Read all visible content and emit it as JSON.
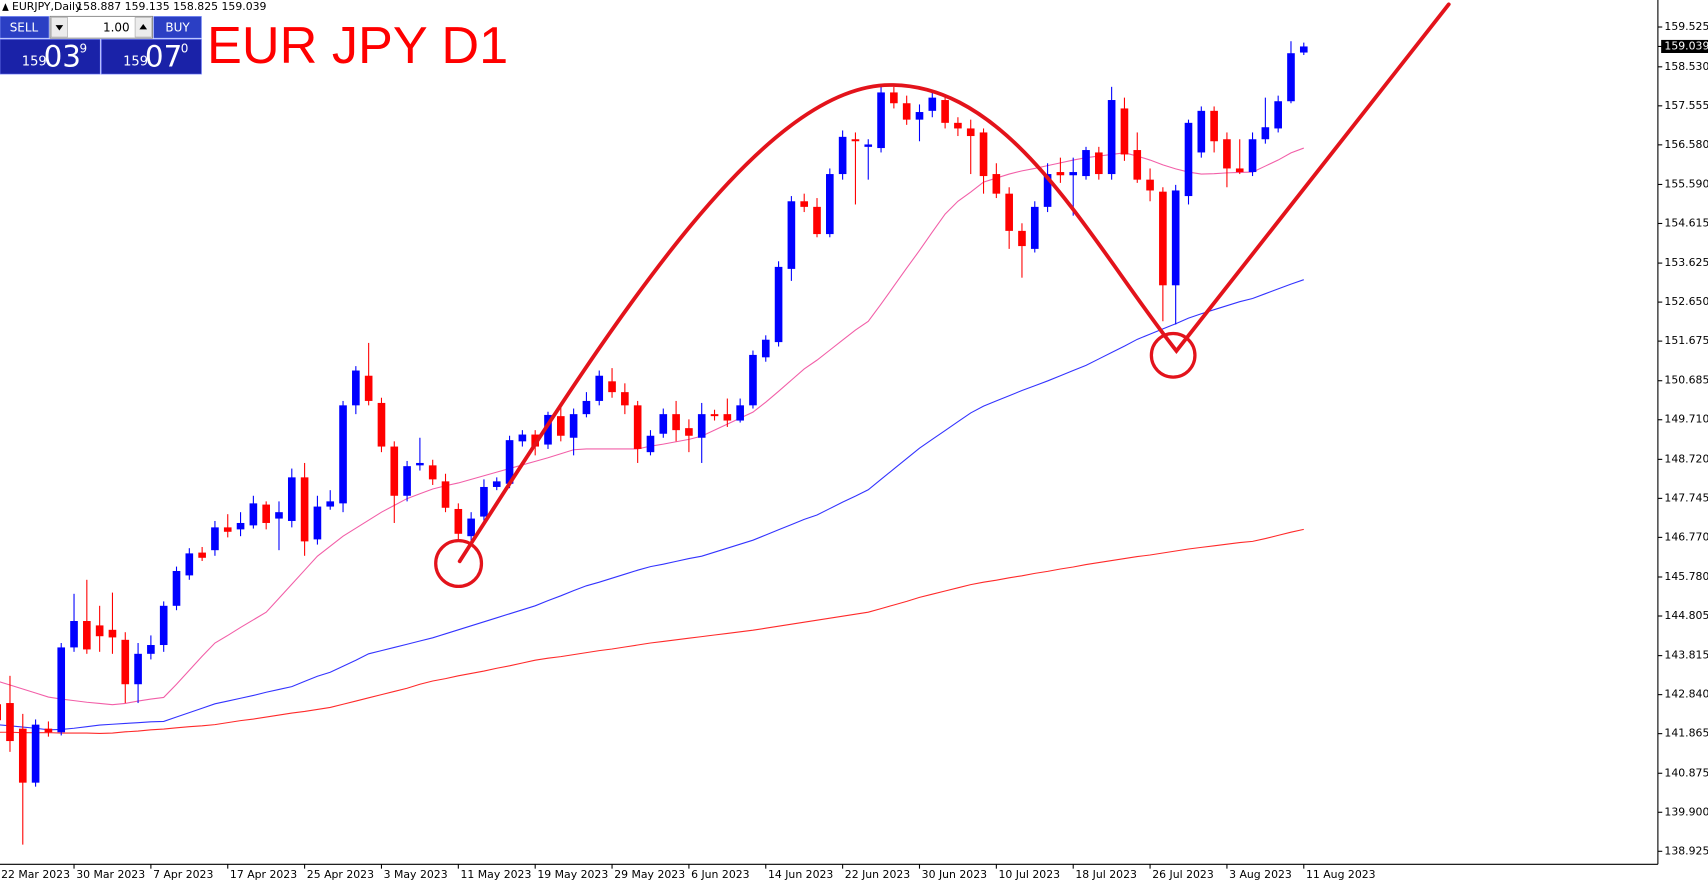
{
  "header": {
    "symbol": "EURJPY,Daily",
    "ohlc": "158.887 159.135 158.825 159.039"
  },
  "trade_panel": {
    "sell": "SELL",
    "lot": "1.00",
    "buy": "BUY",
    "sell_price": {
      "handle": "159",
      "pips": "03",
      "point": "9"
    },
    "buy_price": {
      "handle": "159",
      "pips": "07",
      "point": "0"
    }
  },
  "chart_data": {
    "type": "candlestick",
    "title": "EUR JPY D1",
    "categories": [
      "22 Mar 2023",
      null,
      null,
      null,
      null,
      null,
      "30 Mar 2023",
      null,
      null,
      null,
      null,
      null,
      "7 Apr 2023",
      null,
      null,
      null,
      null,
      null,
      "17 Apr 2023",
      null,
      null,
      null,
      null,
      null,
      "25 Apr 2023",
      null,
      null,
      null,
      null,
      null,
      "3 May 2023",
      null,
      null,
      null,
      null,
      null,
      "11 May 2023",
      null,
      null,
      null,
      null,
      null,
      "19 May 2023",
      null,
      null,
      null,
      null,
      null,
      "29 May 2023",
      null,
      null,
      null,
      null,
      null,
      "6 Jun 2023",
      null,
      null,
      null,
      null,
      null,
      "14 Jun 2023",
      null,
      null,
      null,
      null,
      null,
      "22 Jun 2023",
      null,
      null,
      null,
      null,
      null,
      "30 Jun 2023",
      null,
      null,
      null,
      null,
      null,
      "10 Jul 2023",
      null,
      null,
      null,
      null,
      null,
      "18 Jul 2023",
      null,
      null,
      null,
      null,
      null,
      "26 Jul 2023",
      null,
      null,
      null,
      null,
      null,
      "3 Aug 2023",
      null,
      null,
      null,
      null,
      null,
      "11 Aug 2023"
    ],
    "open": [
      142.6,
      142.63,
      141.99,
      140.64,
      141.99,
      141.9,
      144.02,
      144.68,
      144.57,
      144.46,
      144.21,
      143.1,
      143.86,
      144.08,
      145.06,
      145.82,
      146.39,
      146.45,
      147.02,
      146.97,
      147.07,
      147.59,
      147.24,
      147.18,
      148.27,
      146.72,
      147.54,
      147.62,
      150.07,
      150.81,
      150.13,
      149.04,
      147.81,
      148.57,
      148.57,
      148.17,
      147.48,
      146.8,
      147.29,
      148.03,
      148.11,
      149.17,
      149.34,
      149.09,
      149.8,
      149.26,
      149.85,
      150.18,
      150.67,
      150.4,
      150.07,
      148.9,
      149.36,
      149.85,
      149.5,
      149.26,
      149.85,
      149.85,
      149.69,
      150.07,
      151.27,
      151.65,
      153.48,
      155.17,
      155.03,
      154.35,
      155.85,
      156.72,
      156.53,
      156.5,
      157.89,
      157.62,
      157.21,
      157.43,
      157.7,
      157.13,
      156.99,
      156.89,
      155.85,
      155.36,
      154.43,
      153.98,
      155.03,
      155.9,
      155.82,
      155.8,
      156.39,
      155.85,
      157.49,
      156.45,
      155.71,
      155.41,
      153.07,
      155.3,
      156.39,
      157.43,
      156.72,
      155.99,
      155.9,
      156.72,
      156.99,
      157.67,
      158.887
    ],
    "high": [
      142.9,
      143.31,
      142.36,
      142.22,
      142.17,
      144.13,
      145.36,
      145.71,
      145.06,
      145.39,
      144.4,
      144.13,
      144.32,
      145.17,
      146.04,
      146.5,
      146.53,
      147.18,
      147.35,
      147.4,
      147.81,
      147.67,
      147.67,
      148.49,
      148.63,
      147.81,
      147.95,
      150.18,
      151.05,
      151.63,
      150.26,
      149.17,
      148.68,
      149.26,
      148.71,
      148.36,
      147.62,
      147.4,
      148.22,
      148.27,
      149.31,
      149.45,
      149.45,
      149.91,
      150.13,
      149.99,
      150.4,
      150.94,
      151.0,
      150.62,
      150.18,
      149.45,
      149.99,
      150.18,
      149.72,
      150.13,
      149.96,
      150.24,
      150.24,
      151.44,
      151.82,
      153.67,
      155.3,
      155.36,
      155.25,
      155.99,
      156.94,
      156.89,
      156.72,
      158.03,
      158.03,
      157.81,
      157.59,
      157.89,
      157.84,
      157.27,
      157.21,
      156.99,
      156.12,
      155.52,
      154.62,
      155.17,
      156.12,
      156.26,
      156.26,
      156.53,
      156.53,
      158.03,
      157.76,
      156.89,
      155.99,
      155.52,
      155.58,
      157.21,
      157.54,
      157.54,
      156.89,
      156.72,
      156.89,
      157.76,
      157.81,
      159.17,
      159.135
    ],
    "low": [
      141.9,
      141.41,
      139.09,
      140.54,
      141.79,
      141.82,
      143.91,
      143.86,
      143.91,
      143.86,
      142.63,
      142.63,
      143.72,
      143.91,
      144.95,
      145.71,
      146.18,
      146.31,
      146.77,
      146.8,
      146.99,
      146.97,
      146.45,
      147.02,
      146.31,
      146.59,
      147.46,
      147.4,
      149.85,
      150.07,
      148.9,
      147.13,
      147.67,
      148.44,
      148.08,
      147.4,
      146.72,
      146.69,
      147.18,
      147.95,
      148.0,
      149.04,
      148.82,
      148.98,
      149.17,
      148.82,
      149.77,
      150.07,
      150.26,
      149.85,
      148.63,
      148.82,
      149.26,
      149.17,
      148.9,
      148.63,
      149.69,
      149.53,
      149.64,
      149.99,
      151.16,
      151.54,
      153.18,
      154.9,
      154.27,
      154.27,
      155.71,
      155.09,
      155.71,
      156.39,
      157.49,
      157.08,
      156.67,
      157.27,
      156.99,
      156.8,
      155.85,
      155.36,
      155.25,
      153.98,
      153.26,
      153.89,
      154.9,
      155.63,
      154.81,
      155.71,
      155.71,
      155.71,
      156.18,
      155.63,
      155.17,
      152.17,
      152.09,
      155.09,
      156.26,
      156.39,
      155.52,
      155.85,
      155.8,
      156.61,
      156.89,
      157.62,
      158.825
    ],
    "close": [
      142.2,
      141.68,
      140.64,
      142.09,
      141.9,
      144.02,
      144.68,
      143.97,
      144.3,
      144.27,
      143.1,
      143.86,
      144.08,
      145.06,
      145.93,
      146.37,
      146.26,
      147.02,
      146.91,
      147.13,
      147.62,
      147.13,
      147.4,
      148.27,
      146.67,
      147.54,
      147.67,
      150.07,
      150.94,
      150.18,
      149.04,
      147.81,
      148.55,
      148.63,
      148.22,
      147.51,
      146.86,
      147.24,
      148.03,
      148.17,
      149.2,
      149.34,
      149.04,
      149.83,
      149.31,
      149.85,
      150.18,
      150.81,
      150.4,
      150.07,
      148.98,
      149.31,
      149.85,
      149.45,
      149.31,
      149.85,
      149.8,
      149.69,
      150.07,
      151.33,
      151.71,
      153.53,
      155.17,
      155.03,
      154.35,
      155.85,
      156.78,
      156.67,
      156.59,
      157.89,
      157.62,
      157.21,
      157.4,
      157.76,
      157.13,
      156.99,
      156.8,
      155.8,
      155.36,
      154.43,
      154.05,
      155.03,
      155.85,
      155.82,
      155.9,
      156.45,
      155.85,
      157.7,
      156.34,
      155.71,
      155.44,
      153.07,
      155.44,
      157.13,
      157.43,
      156.67,
      155.99,
      155.9,
      156.72,
      157.02,
      157.67,
      158.87,
      159.039
    ],
    "up_color": "#0000ff",
    "down_color": "#ff0000",
    "series": [
      {
        "color": "#f25fa8",
        "values": [
          143.18,
          143.08,
          142.98,
          142.88,
          142.78,
          142.73,
          142.69,
          142.65,
          142.62,
          142.59,
          142.62,
          142.68,
          142.73,
          142.77,
          143.1,
          143.45,
          143.8,
          144.13,
          144.32,
          144.52,
          144.71,
          144.9,
          145.25,
          145.6,
          145.95,
          146.3,
          146.55,
          146.8,
          147.0,
          147.2,
          147.4,
          147.57,
          147.74,
          147.86,
          147.98,
          148.06,
          148.13,
          148.22,
          148.31,
          148.4,
          148.49,
          148.58,
          148.67,
          148.76,
          148.86,
          148.96,
          148.98,
          148.98,
          148.98,
          148.98,
          148.98,
          149.05,
          149.1,
          149.16,
          149.22,
          149.3,
          149.45,
          149.6,
          149.75,
          149.9,
          150.15,
          150.42,
          150.7,
          150.98,
          151.2,
          151.45,
          151.7,
          151.95,
          152.17,
          152.6,
          153.05,
          153.5,
          153.94,
          154.4,
          154.85,
          155.17,
          155.4,
          155.65,
          155.75,
          155.85,
          155.93,
          155.99,
          156.06,
          156.13,
          156.2,
          156.26,
          156.3,
          156.34,
          156.38,
          156.3,
          156.2,
          156.08,
          155.98,
          155.9,
          155.85,
          155.86,
          155.88,
          155.89,
          155.9,
          156.05,
          156.2,
          156.38,
          156.5
        ]
      },
      {
        "color": "#3333ff",
        "values": [
          142.09,
          142.06,
          142.03,
          142.0,
          141.96,
          141.97,
          142.0,
          142.04,
          142.08,
          142.1,
          142.12,
          142.14,
          142.16,
          142.17,
          142.28,
          142.39,
          142.5,
          142.61,
          142.68,
          142.75,
          142.82,
          142.9,
          142.97,
          143.04,
          143.17,
          143.3,
          143.4,
          143.55,
          143.7,
          143.86,
          143.94,
          144.02,
          144.1,
          144.18,
          144.26,
          144.36,
          144.46,
          144.56,
          144.66,
          144.76,
          144.86,
          144.96,
          145.06,
          145.19,
          145.31,
          145.44,
          145.56,
          145.65,
          145.75,
          145.85,
          145.95,
          146.04,
          146.1,
          146.17,
          146.24,
          146.3,
          146.4,
          146.5,
          146.6,
          146.7,
          146.83,
          146.96,
          147.09,
          147.22,
          147.33,
          147.49,
          147.65,
          147.8,
          147.96,
          148.22,
          148.48,
          148.74,
          149.0,
          149.22,
          149.44,
          149.66,
          149.88,
          150.05,
          150.18,
          150.31,
          150.44,
          150.56,
          150.68,
          150.81,
          150.94,
          151.07,
          151.23,
          151.39,
          151.55,
          151.72,
          151.85,
          151.98,
          152.11,
          152.25,
          152.36,
          152.46,
          152.56,
          152.66,
          152.74,
          152.86,
          152.98,
          153.1,
          153.21
        ]
      },
      {
        "color": "#ff2a2a",
        "values": [
          141.9,
          141.9,
          141.89,
          141.89,
          141.89,
          141.88,
          141.88,
          141.88,
          141.87,
          141.88,
          141.91,
          141.93,
          141.96,
          141.98,
          142.01,
          142.04,
          142.06,
          142.09,
          142.14,
          142.19,
          142.23,
          142.28,
          142.33,
          142.38,
          142.42,
          142.47,
          142.52,
          142.6,
          142.68,
          142.76,
          142.84,
          142.92,
          143.0,
          143.1,
          143.18,
          143.24,
          143.31,
          143.37,
          143.43,
          143.5,
          143.56,
          143.63,
          143.7,
          143.75,
          143.79,
          143.84,
          143.89,
          143.94,
          143.98,
          144.03,
          144.08,
          144.13,
          144.17,
          144.21,
          144.25,
          144.29,
          144.33,
          144.37,
          144.41,
          144.45,
          144.5,
          144.55,
          144.6,
          144.65,
          144.7,
          144.75,
          144.8,
          144.85,
          144.9,
          144.99,
          145.08,
          145.17,
          145.27,
          145.35,
          145.43,
          145.51,
          145.59,
          145.65,
          145.7,
          145.76,
          145.81,
          145.87,
          145.92,
          145.98,
          146.03,
          146.09,
          146.14,
          146.19,
          146.24,
          146.29,
          146.33,
          146.38,
          146.43,
          146.48,
          146.52,
          146.56,
          146.6,
          146.64,
          146.67,
          146.74,
          146.82,
          146.9,
          146.97
        ]
      }
    ],
    "last_price": 159.039,
    "ylim": [
      138.6,
      160.2
    ],
    "yticks": [
      159.525,
      {
        "value": 158.53,
        "label": "158.530"
      },
      157.555,
      {
        "value": 156.58,
        "label": "156.580"
      },
      {
        "value": 155.59,
        "label": "155.590"
      },
      154.615,
      153.625,
      {
        "value": 152.65,
        "label": "152.650"
      },
      151.675,
      150.685,
      {
        "value": 149.71,
        "label": "149.710"
      },
      {
        "value": 148.72,
        "label": "148.720"
      },
      147.745,
      {
        "value": 146.77,
        "label": "146.770"
      },
      {
        "value": 145.78,
        "label": "145.780"
      },
      144.805,
      143.815,
      {
        "value": 142.84,
        "label": "142.840"
      },
      141.865,
      140.875,
      {
        "value": 139.9,
        "label": "139.900"
      },
      138.925
    ]
  }
}
